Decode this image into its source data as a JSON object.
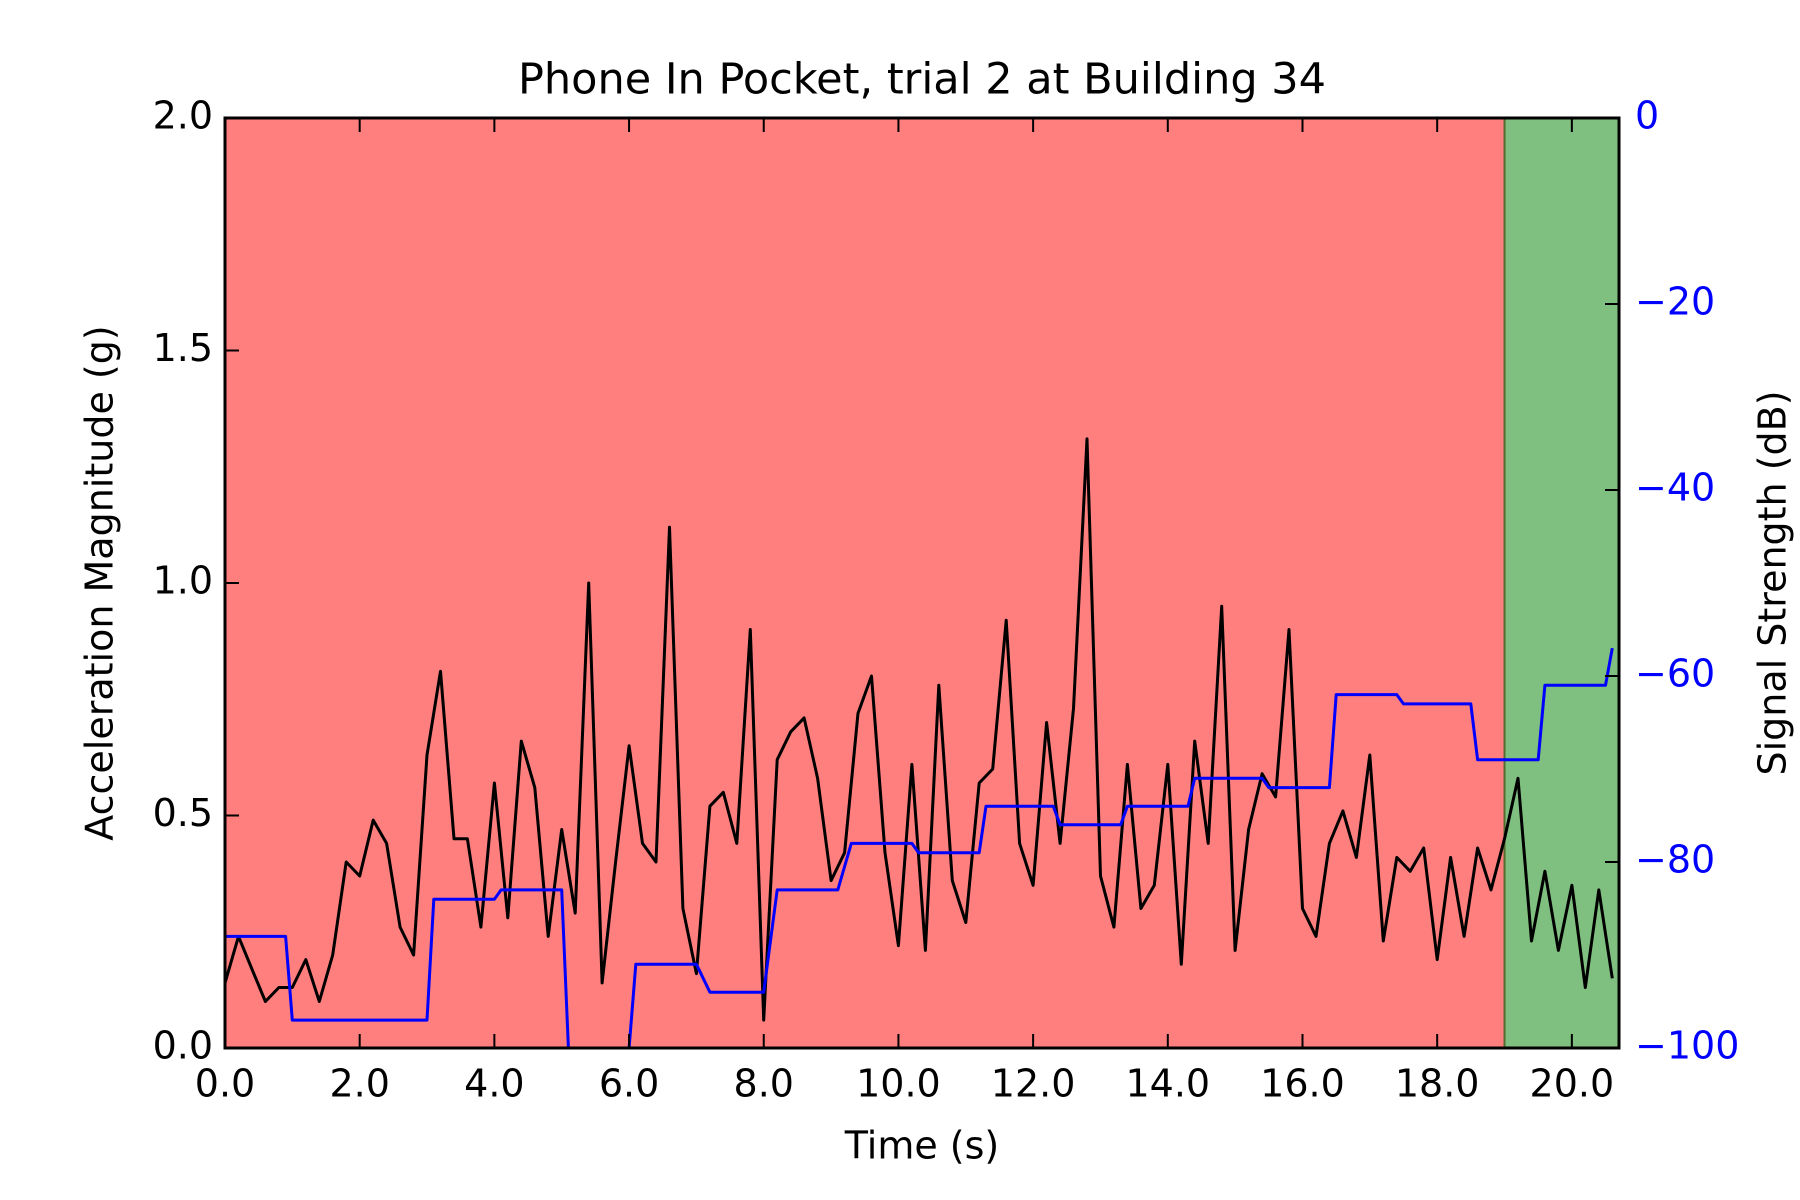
{
  "chart_data": {
    "type": "line",
    "title": "Phone In Pocket, trial 2 at Building 34",
    "xlabel": "Time (s)",
    "ylabel": "Acceleration Magnitude (g)",
    "y2label": "Signal Strength (dB)",
    "xlim": [
      0,
      20.7
    ],
    "ylim": [
      0,
      2
    ],
    "y2lim": [
      -100,
      0
    ],
    "xticks": [
      {
        "value": 0,
        "label": "0.0"
      },
      {
        "value": 2,
        "label": "2.0"
      },
      {
        "value": 4,
        "label": "4.0"
      },
      {
        "value": 6,
        "label": "6.0"
      },
      {
        "value": 8,
        "label": "8.0"
      },
      {
        "value": 10,
        "label": "10.0"
      },
      {
        "value": 12,
        "label": "12.0"
      },
      {
        "value": 14,
        "label": "14.0"
      },
      {
        "value": 16,
        "label": "16.0"
      },
      {
        "value": 18,
        "label": "18.0"
      },
      {
        "value": 20,
        "label": "20.0"
      }
    ],
    "yticks": [
      {
        "value": 0,
        "label": "0.0"
      },
      0.5,
      {
        "value": 1,
        "label": "1.0"
      },
      1.5,
      {
        "value": 2,
        "label": "2.0"
      }
    ],
    "y2ticks": [
      {
        "value": -100,
        "label": "−100"
      },
      {
        "value": -80,
        "label": "−80"
      },
      {
        "value": -60,
        "label": "−60"
      },
      {
        "value": -40,
        "label": "−40"
      },
      {
        "value": -20,
        "label": "−20"
      },
      0
    ],
    "y2color": "#0000ff",
    "spans": [
      {
        "start": 0,
        "end": 19,
        "color": "#ff7f7f"
      },
      {
        "start": 19,
        "end": 20.7,
        "color": "#7fbf7f"
      }
    ],
    "series": [
      {
        "color": "#000000",
        "axis": "y",
        "x": [
          0,
          0.2,
          0.4,
          0.6,
          0.8,
          1,
          1.2,
          1.4,
          1.6,
          1.8,
          2,
          2.2,
          2.4,
          2.6,
          2.8,
          3,
          3.2,
          3.4,
          3.6,
          3.8,
          4,
          4.2,
          4.4,
          4.6,
          4.8,
          5,
          5.2,
          5.4,
          5.6,
          5.8,
          6,
          6.2,
          6.4,
          6.6,
          6.8,
          7,
          7.2,
          7.4,
          7.6,
          7.8,
          8,
          8.2,
          8.4,
          8.6,
          8.8,
          9,
          9.2,
          9.4,
          9.6,
          9.8,
          10,
          10.2,
          10.4,
          10.6,
          10.8,
          11,
          11.2,
          11.4,
          11.6,
          11.8,
          12,
          12.2,
          12.4,
          12.6,
          12.8,
          13,
          13.2,
          13.4,
          13.6,
          13.8,
          14,
          14.2,
          14.4,
          14.6,
          14.8,
          15,
          15.2,
          15.4,
          15.6,
          15.8,
          16,
          16.2,
          16.4,
          16.6,
          16.8,
          17,
          17.2,
          17.4,
          17.6,
          17.8,
          18,
          18.2,
          18.4,
          18.6,
          18.8,
          19,
          19.2,
          19.4,
          19.6,
          19.8,
          20,
          20.2,
          20.4,
          20.6
        ],
        "values": [
          0.14,
          0.24,
          0.17,
          0.1,
          0.13,
          0.13,
          0.19,
          0.1,
          0.2,
          0.4,
          0.37,
          0.49,
          0.44,
          0.26,
          0.2,
          0.63,
          0.81,
          0.45,
          0.45,
          0.26,
          0.57,
          0.28,
          0.66,
          0.56,
          0.24,
          0.47,
          0.29,
          1.0,
          0.14,
          0.4,
          0.65,
          0.44,
          0.4,
          1.12,
          0.3,
          0.16,
          0.52,
          0.55,
          0.44,
          0.9,
          0.06,
          0.62,
          0.68,
          0.71,
          0.58,
          0.36,
          0.42,
          0.72,
          0.8,
          0.42,
          0.22,
          0.61,
          0.21,
          0.78,
          0.36,
          0.27,
          0.57,
          0.6,
          0.92,
          0.44,
          0.35,
          0.7,
          0.44,
          0.73,
          1.31,
          0.37,
          0.26,
          0.61,
          0.3,
          0.35,
          0.61,
          0.18,
          0.66,
          0.44,
          0.95,
          0.21,
          0.47,
          0.59,
          0.54,
          0.9,
          0.3,
          0.24,
          0.44,
          0.51,
          0.41,
          0.63,
          0.23,
          0.41,
          0.38,
          0.43,
          0.19,
          0.41,
          0.24,
          0.43,
          0.34,
          0.45,
          0.58,
          0.23,
          0.38,
          0.21,
          0.35,
          0.13,
          0.34,
          0.15
        ]
      },
      {
        "color": "#0000ff",
        "axis": "y2",
        "x": [
          0,
          0.9,
          1,
          3,
          3.1,
          4,
          4.1,
          5,
          5.1,
          6,
          6.1,
          7,
          7.2,
          8,
          8.2,
          9.1,
          9.3,
          10.2,
          10.3,
          11.2,
          11.3,
          12.3,
          12.4,
          13.3,
          13.4,
          14.3,
          14.4,
          15.4,
          15.5,
          16.4,
          16.5,
          17.4,
          17.5,
          18.5,
          18.6,
          19.5,
          19.6,
          20.5,
          20.6
        ],
        "values": [
          -88,
          -88,
          -97,
          -97,
          -84,
          -84,
          -83,
          -83,
          -100,
          -100,
          -91,
          -91,
          -94,
          -94,
          -83,
          -83,
          -78,
          -78,
          -79,
          -79,
          -74,
          -74,
          -76,
          -76,
          -74,
          -74,
          -71,
          -71,
          -72,
          -72,
          -62,
          -62,
          -63,
          -63,
          -69,
          -69,
          -61,
          -61,
          -57
        ]
      }
    ]
  }
}
